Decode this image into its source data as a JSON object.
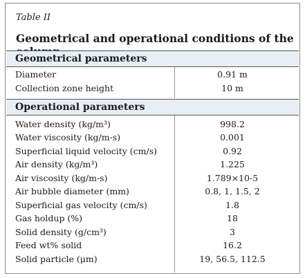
{
  "table": {
    "label": "Table II",
    "title": "Geometrical and operational conditions of the column",
    "sections": [
      {
        "heading": "Geometrical parameters",
        "rows": [
          {
            "param": "Diameter",
            "value": "0.91 m"
          },
          {
            "param": "Collection zone height",
            "value": "10 m"
          }
        ]
      },
      {
        "heading": "Operational parameters",
        "rows": [
          {
            "param": "Water density (kg/m³)",
            "value": "998.2"
          },
          {
            "param": "Water viscosity (kg/m-s)",
            "value": "0.001"
          },
          {
            "param": "Superficial liquid velocity (cm/s)",
            "value": "0.92"
          },
          {
            "param": "Air density (kg/m³)",
            "value": "1.225"
          },
          {
            "param": "Air viscosity (kg/m-s)",
            "value": "1.789×10-5"
          },
          {
            "param": "Air bubble diameter (mm)",
            "value": "0.8, 1, 1.5, 2"
          },
          {
            "param": "Superficial gas velocity (cm/s)",
            "value": "1.8"
          },
          {
            "param": "Gas holdup (%)",
            "value": "18"
          },
          {
            "param": "Solid density (g/cm³)",
            "value": "3"
          },
          {
            "param": "Feed wt% solid",
            "value": "16.2"
          },
          {
            "param": "Solid particle (μm)",
            "value": "19, 56.5, 112.5"
          }
        ]
      }
    ]
  }
}
